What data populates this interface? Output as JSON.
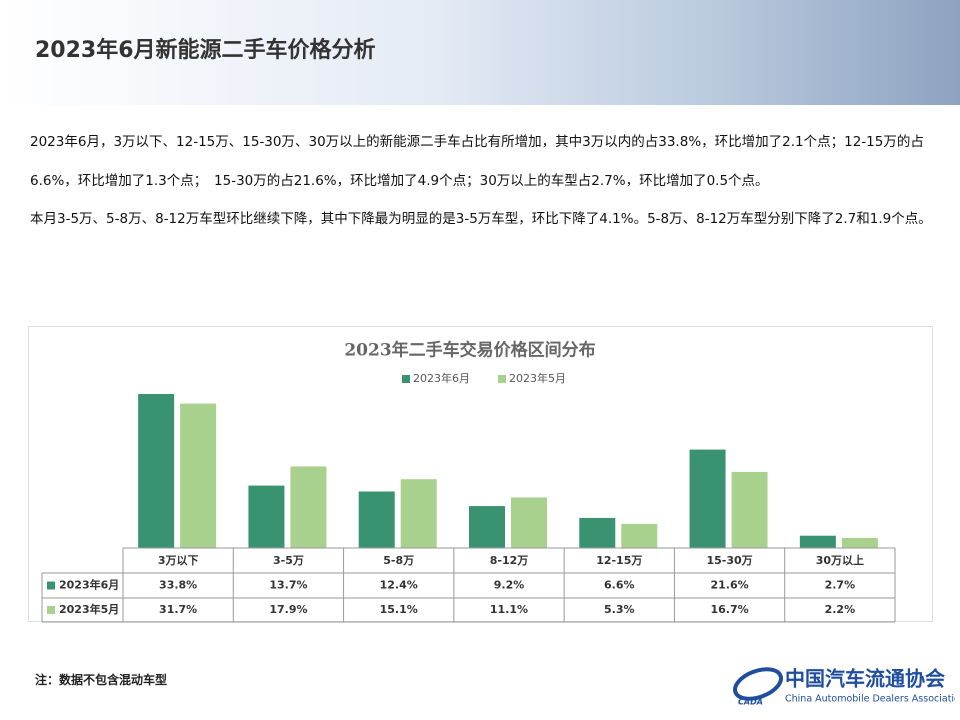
{
  "header": {
    "title": "2023年6月新能源二手车价格分析"
  },
  "paragraphs": [
    "2023年6月，3万以下、12-15万、15-30万、30万以上的新能源二手车占比有所增加，其中3万以内的占33.8%，环比增加了2.1个点；12-15万的占6.6%，环比增加了1.3个点；　15-30万的占21.6%，环比增加了4.9个点；30万以上的车型占2.7%，环比增加了0.5个点。",
    "本月3-5万、5-8万、8-12万车型环比继续下降，其中下降最为明显的是3-5万车型，环比下降了4.1%。5-8万、8-12万车型分别下降了2.7和1.9个点。"
  ],
  "chart_data": {
    "type": "bar",
    "title": "2023年二手车交易价格区间分布",
    "categories": [
      "3万以下",
      "3-5万",
      "5-8万",
      "8-12万",
      "12-15万",
      "15-30万",
      "30万以上"
    ],
    "series": [
      {
        "name": "2023年6月",
        "color": "#3a9370",
        "values": [
          33.8,
          13.7,
          12.4,
          9.2,
          6.6,
          21.6,
          2.7
        ],
        "value_labels": [
          "33.8%",
          "13.7%",
          "12.4%",
          "9.2%",
          "6.6%",
          "21.6%",
          "2.7%"
        ]
      },
      {
        "name": "2023年5月",
        "color": "#a9d18e",
        "values": [
          31.7,
          17.9,
          15.1,
          11.1,
          5.3,
          16.7,
          2.2
        ],
        "value_labels": [
          "31.7%",
          "17.9%",
          "15.1%",
          "11.1%",
          "5.3%",
          "16.7%",
          "2.2%"
        ]
      }
    ],
    "legend": "top"
  },
  "note": "注：数据不包含混动车型",
  "logo": {
    "name": "中国汽车流通协会",
    "english": "China Automobile Dealers Association",
    "mark": "CADA"
  }
}
